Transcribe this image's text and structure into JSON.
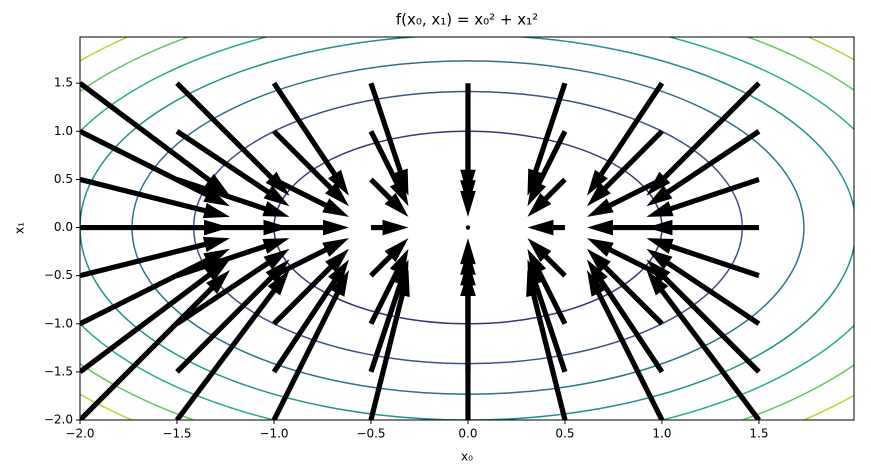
{
  "chart_data": {
    "type": "contour-quiver",
    "title": "f(x₀, x₁) = x₀² + x₁²",
    "xlabel": "x₀",
    "ylabel": "x₁",
    "xlim": [
      -2,
      1.99
    ],
    "ylim": [
      -2,
      1.98
    ],
    "xticks": [
      {
        "value": -2,
        "label": "−2.0"
      },
      {
        "value": -1.5,
        "label": "−1.5"
      },
      {
        "value": -1,
        "label": "−1.0"
      },
      {
        "value": -0.5,
        "label": "−0.5"
      },
      {
        "value": 0,
        "label": "0.0"
      },
      {
        "value": 0.5,
        "label": "0.5"
      },
      {
        "value": 1,
        "label": "1.0"
      },
      {
        "value": 1.5,
        "label": "1.5"
      }
    ],
    "yticks": [
      {
        "value": -2,
        "label": "−2.0"
      },
      {
        "value": -1.5,
        "label": "−1.5"
      },
      {
        "value": -1,
        "label": "−1.0"
      },
      {
        "value": -0.5,
        "label": "−0.5"
      },
      {
        "value": 0,
        "label": "0.0"
      },
      {
        "value": 0.5,
        "label": "0.5"
      },
      {
        "value": 1,
        "label": "1.0"
      },
      {
        "value": 1.5,
        "label": "1.5"
      }
    ],
    "levels": [
      1,
      2,
      3,
      4,
      5,
      6,
      7
    ],
    "level_colors": [
      "#472d7b",
      "#3b528b",
      "#2c728e",
      "#21918c",
      "#28ae80",
      "#5ec962",
      "#addc30"
    ],
    "quiver": {
      "color": "#000000",
      "x": [
        -2,
        -1.5,
        -1,
        -0.5,
        0,
        0.5,
        1,
        1.5
      ],
      "y": [
        -2,
        -1.5,
        -1,
        -0.5,
        0,
        0.5,
        1,
        1.5
      ],
      "u": [
        4,
        3,
        2,
        1,
        0,
        -1,
        -2,
        -3
      ],
      "v": [
        4,
        3,
        2,
        1,
        0,
        -1,
        -2,
        -3
      ]
    }
  }
}
